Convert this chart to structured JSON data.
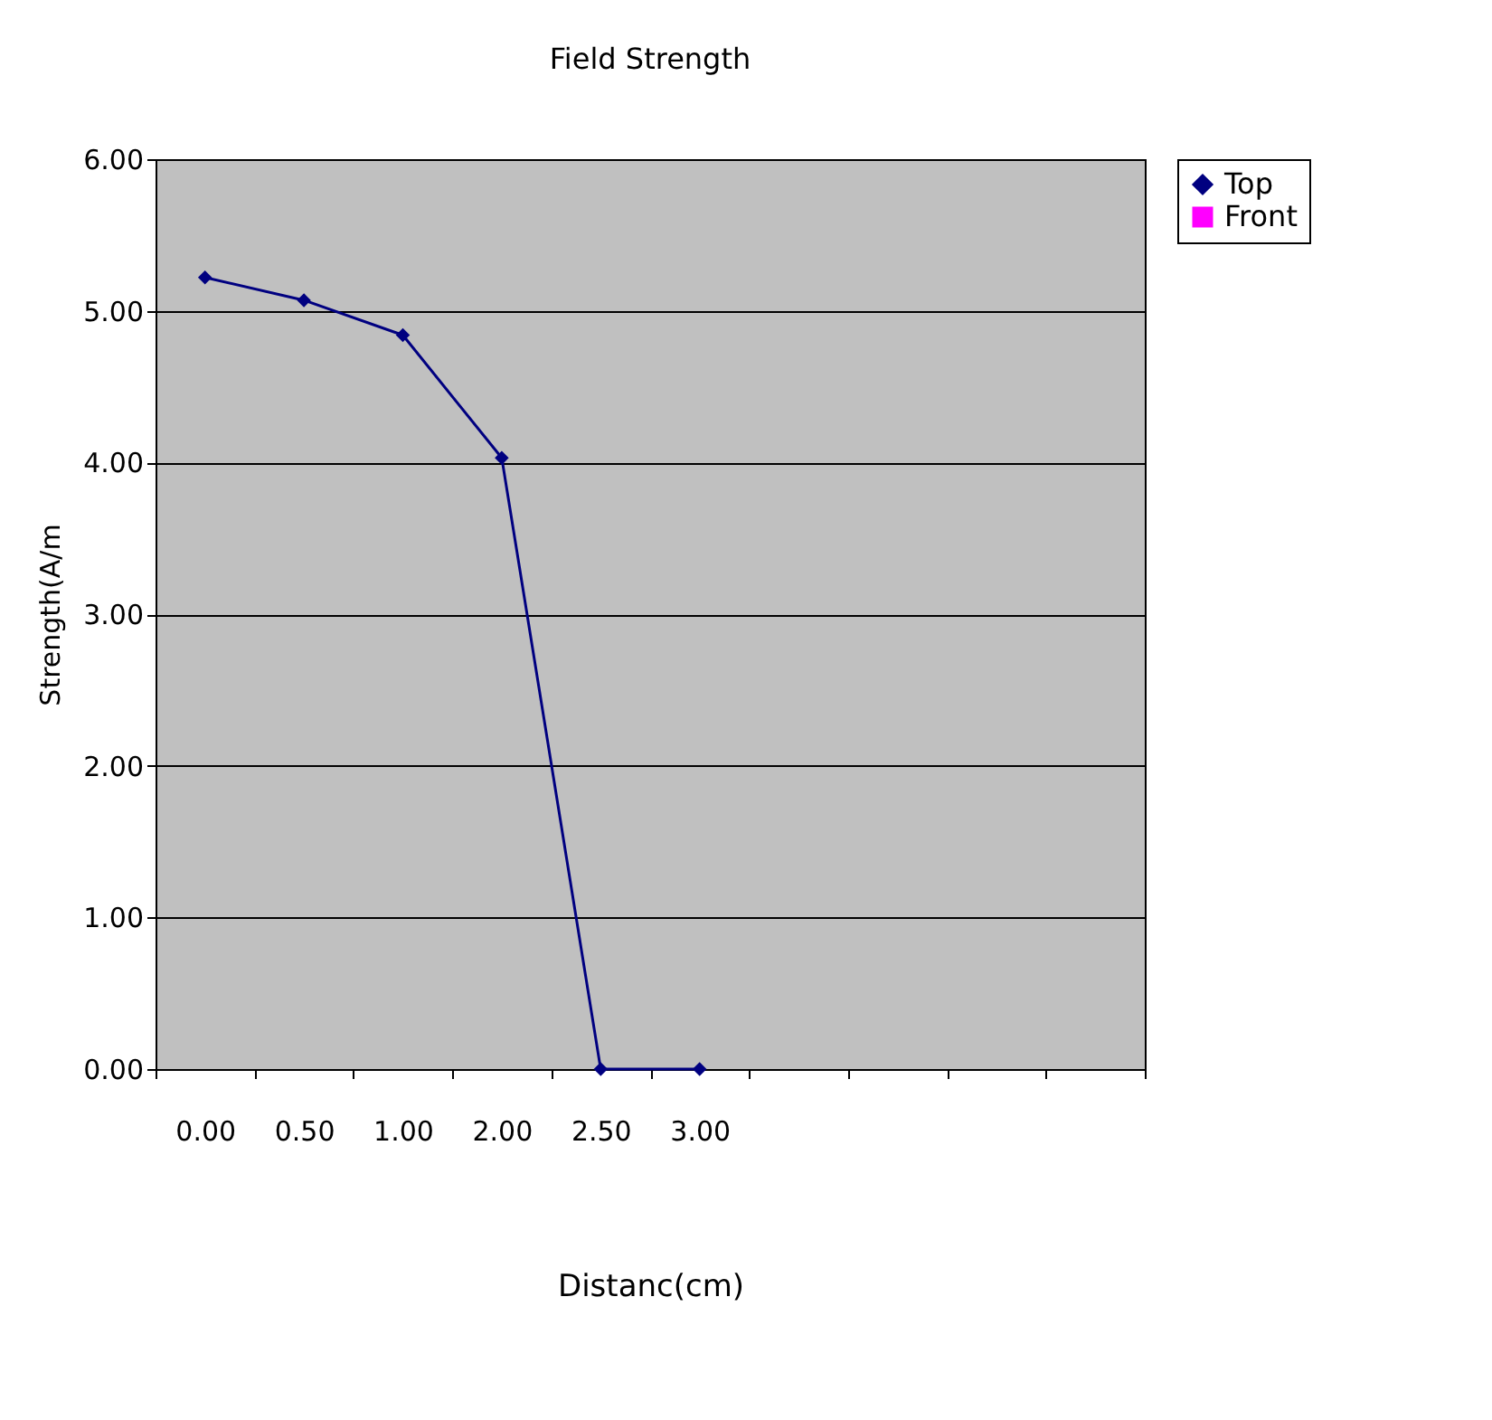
{
  "chart_data": {
    "type": "line",
    "title": "Field Strength",
    "xlabel": "Distanc(cm)",
    "ylabel": "Strength(A/m",
    "categories": [
      "0.00",
      "0.50",
      "1.00",
      "2.00",
      "2.50",
      "3.00",
      null,
      null,
      null,
      null
    ],
    "series": [
      {
        "name": "Top",
        "color": "#000080",
        "marker": "diamond",
        "values": [
          5.22,
          5.07,
          4.84,
          4.03,
          0,
          0,
          null,
          null,
          null,
          null
        ]
      },
      {
        "name": "Front",
        "color": "#ff00ff",
        "marker": "square",
        "values": [
          null,
          null,
          null,
          null,
          null,
          null,
          null,
          null,
          null,
          null
        ]
      }
    ],
    "ylim": [
      0,
      6
    ],
    "yticks": [
      {
        "value": 0,
        "label": "0.00"
      },
      {
        "value": 1,
        "label": "1.00"
      },
      {
        "value": 2,
        "label": "2.00"
      },
      {
        "value": 3,
        "label": "3.00"
      },
      {
        "value": 4,
        "label": "4.00"
      },
      {
        "value": 5,
        "label": "5.00"
      },
      {
        "value": 6,
        "label": "6.00"
      }
    ],
    "grid": "y",
    "legend": "right",
    "line_style": "solid"
  }
}
